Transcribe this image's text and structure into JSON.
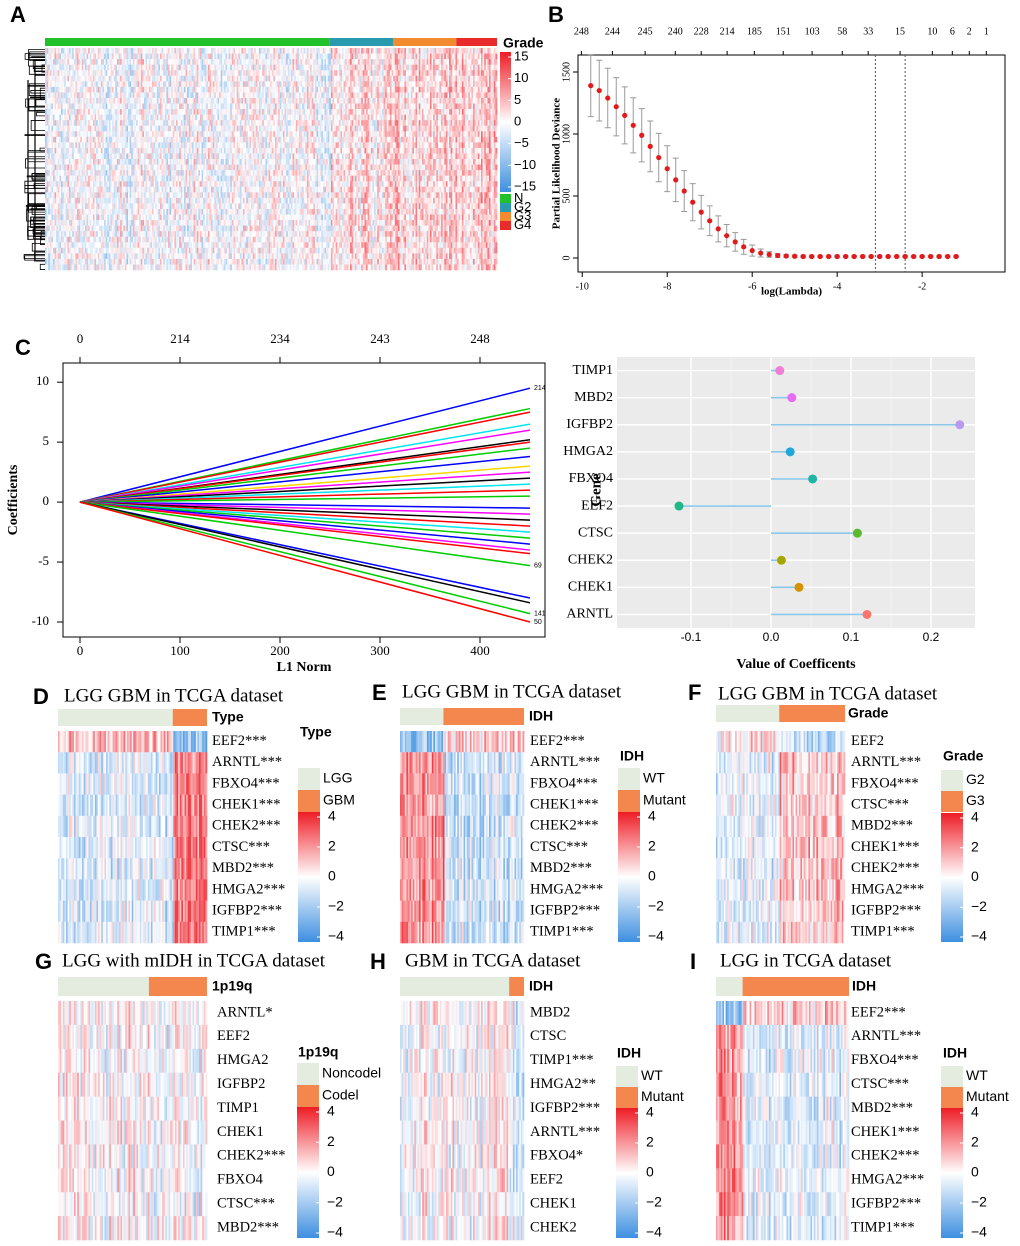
{
  "chart_data": [
    {
      "panel": "B",
      "type": "errorbar",
      "xlabel": "log(Lambda)",
      "ylabel": "Partial Likelihood Deviance",
      "x": [
        -9.8,
        -9.6,
        -9.4,
        -9.2,
        -9.0,
        -8.8,
        -8.6,
        -8.4,
        -8.2,
        -8.0,
        -7.8,
        -7.6,
        -7.4,
        -7.2,
        -7.0,
        -6.8,
        -6.6,
        -6.4,
        -6.2,
        -6.0,
        -5.8,
        -5.6,
        -5.4,
        -5.2,
        -5.0,
        -4.8,
        -4.6,
        -4.4,
        -4.2,
        -4.0,
        -3.8,
        -3.6,
        -3.4,
        -3.2,
        -3.0,
        -2.8,
        -2.6,
        -2.4,
        -2.2,
        -2.0,
        -1.8,
        -1.6,
        -1.4,
        -1.2
      ],
      "values": [
        1390,
        1350,
        1290,
        1220,
        1150,
        1070,
        990,
        900,
        810,
        720,
        630,
        540,
        450,
        370,
        300,
        235,
        180,
        130,
        90,
        60,
        40,
        28,
        20,
        16,
        14,
        12,
        12,
        12,
        12,
        12,
        12,
        12,
        12,
        12,
        12,
        12,
        12,
        12,
        12,
        12,
        12,
        12,
        12,
        12
      ],
      "errors": [
        250,
        245,
        240,
        235,
        230,
        222,
        215,
        205,
        195,
        185,
        175,
        165,
        150,
        135,
        120,
        105,
        90,
        75,
        60,
        45,
        32,
        22,
        15,
        10,
        8,
        5,
        5,
        5,
        5,
        5,
        5,
        5,
        5,
        5,
        5,
        5,
        5,
        5,
        5,
        5,
        5,
        5,
        5,
        5
      ],
      "color": "#e31a1c",
      "error_color": "#9a9a9a",
      "xlim": [
        -10.1,
        -0.05
      ],
      "ylim": [
        -113,
        1637
      ],
      "xticks": [
        -10,
        -8,
        -6,
        -4,
        -2
      ],
      "yticks": [
        0,
        500,
        1000,
        1500
      ],
      "x2ticks": [
        {
          "value": -10.02,
          "label": "248"
        },
        {
          "value": -9.29,
          "label": "244"
        },
        {
          "value": -8.52,
          "label": "245"
        },
        {
          "value": -7.81,
          "label": "240"
        },
        {
          "value": -7.2,
          "label": "228"
        },
        {
          "value": -6.59,
          "label": "214"
        },
        {
          "value": -5.95,
          "label": "185"
        },
        {
          "value": -5.27,
          "label": "151"
        },
        {
          "value": -4.59,
          "label": "103"
        },
        {
          "value": -3.88,
          "label": "58"
        },
        {
          "value": -3.27,
          "label": "33"
        },
        {
          "value": -2.52,
          "label": "15"
        },
        {
          "value": -1.76,
          "label": "10"
        },
        {
          "value": -1.29,
          "label": "6"
        },
        {
          "value": -0.89,
          "label": "2"
        },
        {
          "value": -0.49,
          "label": "1"
        }
      ],
      "vlines": [
        -3.1,
        -2.4
      ]
    },
    {
      "panel": "C",
      "type": "line",
      "xlabel": "L1 Norm",
      "ylabel": "Coefficients",
      "x": [
        0,
        450
      ],
      "xlim": [
        -17,
        465
      ],
      "ylim": [
        -11.25,
        11.6
      ],
      "xticks": [
        0,
        100,
        200,
        300,
        400
      ],
      "yticks": [
        -10,
        -5,
        0,
        5,
        10
      ],
      "x2ticks": [
        {
          "value": 0,
          "label": "0"
        },
        {
          "value": 100,
          "label": "214"
        },
        {
          "value": 200,
          "label": "234"
        },
        {
          "value": 300,
          "label": "243"
        },
        {
          "value": 400,
          "label": "248"
        }
      ],
      "series": [
        {
          "name": "214",
          "color": "#0000ff",
          "values": [
            0,
            9.5
          ]
        },
        {
          "color": "#00cd00",
          "values": [
            0,
            7.8
          ]
        },
        {
          "color": "#ff0000",
          "values": [
            0,
            7.5
          ]
        },
        {
          "color": "#00e5ee",
          "values": [
            0,
            6.5
          ]
        },
        {
          "color": "#ff00ff",
          "values": [
            0,
            6.0
          ]
        },
        {
          "color": "#000000",
          "values": [
            0,
            5.2
          ]
        },
        {
          "color": "#ff0000",
          "values": [
            0,
            5.0
          ]
        },
        {
          "color": "#00cd00",
          "values": [
            0,
            4.5
          ]
        },
        {
          "color": "#0000ff",
          "values": [
            0,
            3.8
          ]
        },
        {
          "color": "#ffd700",
          "values": [
            0,
            3.0
          ]
        },
        {
          "color": "#ff00ff",
          "values": [
            0,
            2.5
          ]
        },
        {
          "color": "#000000",
          "values": [
            0,
            2.0
          ]
        },
        {
          "color": "#00e5ee",
          "values": [
            0,
            1.5
          ]
        },
        {
          "color": "#ff0000",
          "values": [
            0,
            1.0
          ]
        },
        {
          "color": "#00cd00",
          "values": [
            0,
            0.5
          ]
        },
        {
          "color": "#0000ff",
          "values": [
            0,
            -0.5
          ]
        },
        {
          "color": "#ff00ff",
          "values": [
            0,
            -1.0
          ]
        },
        {
          "color": "#000000",
          "values": [
            0,
            -1.5
          ]
        },
        {
          "color": "#ff0000",
          "values": [
            0,
            -2.0
          ]
        },
        {
          "color": "#00e5ee",
          "values": [
            0,
            -2.5
          ]
        },
        {
          "color": "#00cd00",
          "values": [
            0,
            -3.0
          ]
        },
        {
          "color": "#0000ff",
          "values": [
            0,
            -3.5
          ]
        },
        {
          "color": "#ff00ff",
          "values": [
            0,
            -4.0
          ]
        },
        {
          "color": "#ff0000",
          "values": [
            0,
            -4.3
          ]
        },
        {
          "name": "69",
          "color": "#00cd00",
          "values": [
            0,
            -5.3
          ]
        },
        {
          "color": "#0000ff",
          "values": [
            0,
            -8.0
          ]
        },
        {
          "color": "#000000",
          "values": [
            0,
            -8.4
          ]
        },
        {
          "name": "141",
          "color": "#00cd00",
          "values": [
            0,
            -9.3
          ]
        },
        {
          "name": "50",
          "color": "#ff0000",
          "values": [
            0,
            -10.0
          ]
        }
      ]
    },
    {
      "type": "lollipop",
      "xlabel": "Value of Coefficents",
      "ylabel": "Gene",
      "categories": [
        "TIMP1",
        "MBD2",
        "IGFBP2",
        "HMGA2",
        "FBXO4",
        "EEF2",
        "CTSC",
        "CHEK2",
        "CHEK1",
        "ARNTL"
      ],
      "values": [
        0.011,
        0.026,
        0.236,
        0.024,
        0.052,
        -0.115,
        0.108,
        0.013,
        0.035,
        0.12
      ],
      "colors": [
        "#f07ed6",
        "#e76bf3",
        "#b59cf2",
        "#22a6d9",
        "#20b5a5",
        "#1fb886",
        "#5cb82e",
        "#a3a500",
        "#d39200",
        "#f8766d"
      ],
      "stem_color": "#8cc8ea",
      "background": "#ebebeb",
      "xlim": [
        -0.1925,
        0.255
      ],
      "xticks": [
        -0.1,
        {
          "value": 0,
          "label": "0.0"
        },
        0.1,
        0.2
      ],
      "grid": true
    }
  ],
  "heatmaps": [
    {
      "panel": "A",
      "annotation_name": "Grade",
      "groups": [
        {
          "name": "N",
          "color": "#22c02a"
        },
        {
          "name": "G2",
          "color": "#2a9bae"
        },
        {
          "name": "G3",
          "color": "#f28b30"
        },
        {
          "name": "G4",
          "color": "#ea2b2b"
        }
      ],
      "scale_ticks": [
        15,
        10,
        5,
        0,
        {
          "value": -5,
          "label": "−5"
        },
        {
          "value": -10,
          "label": "−10"
        },
        {
          "value": -15,
          "label": "−15"
        }
      ],
      "low_color": "#3d8fe0",
      "high_color": "#ee1c25"
    },
    {
      "panel": "D",
      "title": "LGG GBM in TCGA dataset",
      "annotation_name": "Type",
      "legend_title": "Type",
      "groups": [
        {
          "name": "LGG",
          "color": "#e3ecdf"
        },
        {
          "name": "GBM",
          "color": "#f4874e"
        }
      ],
      "genes": [
        "EEF2***",
        "ARNTL***",
        "FBXO4***",
        "CHEK1***",
        "CHEK2***",
        "CTSC***",
        "MBD2***",
        "HMGA2***",
        "IGFBP2***",
        "TIMP1***"
      ],
      "scale_ticks": [
        4,
        2,
        0,
        {
          "value": -2,
          "label": "−2"
        },
        {
          "value": -4,
          "label": "−4"
        }
      ],
      "low_color": "#3d8fe0",
      "high_color": "#ee1c25"
    },
    {
      "panel": "E",
      "title": "LGG GBM in TCGA dataset",
      "annotation_name": "IDH",
      "legend_title": "IDH",
      "groups": [
        {
          "name": "WT",
          "color": "#e3ecdf"
        },
        {
          "name": "Mutant",
          "color": "#f4874e"
        }
      ],
      "genes": [
        "EEF2***",
        "ARNTL***",
        "FBXO4***",
        "CHEK1***",
        "CHEK2***",
        "CTSC***",
        "MBD2***",
        "HMGA2***",
        "IGFBP2***",
        "TIMP1***"
      ],
      "scale_ticks": [
        4,
        2,
        0,
        {
          "value": -2,
          "label": "−2"
        },
        {
          "value": -4,
          "label": "−4"
        }
      ],
      "low_color": "#3d8fe0",
      "high_color": "#ee1c25"
    },
    {
      "panel": "F",
      "title": "LGG GBM in TCGA dataset",
      "annotation_name": "Grade",
      "legend_title": "Grade",
      "groups": [
        {
          "name": "G2",
          "color": "#e3ecdf"
        },
        {
          "name": "G3",
          "color": "#f4874e"
        }
      ],
      "genes": [
        "EEF2",
        "ARNTL***",
        "FBXO4***",
        "CTSC***",
        "MBD2***",
        "CHEK1***",
        "CHEK2***",
        "HMGA2***",
        "IGFBP2***",
        "TIMP1***"
      ],
      "scale_ticks": [
        4,
        2,
        0,
        {
          "value": -2,
          "label": "−2"
        },
        {
          "value": -4,
          "label": "−4"
        }
      ],
      "low_color": "#3d8fe0",
      "high_color": "#ee1c25"
    },
    {
      "panel": "G",
      "title": "LGG with mIDH in TCGA dataset",
      "annotation_name": "1p19q",
      "legend_title": "1p19q",
      "groups": [
        {
          "name": "Noncodel",
          "color": "#e3ecdf"
        },
        {
          "name": "Codel",
          "color": "#f4874e"
        }
      ],
      "genes": [
        "ARNTL*",
        "EEF2",
        "HMGA2",
        "IGFBP2",
        "TIMP1",
        "CHEK1",
        "CHEK2***",
        "FBXO4",
        "CTSC***",
        "MBD2***"
      ],
      "scale_ticks": [
        4,
        2,
        0,
        {
          "value": -2,
          "label": "−2"
        },
        {
          "value": -4,
          "label": "−4"
        }
      ],
      "low_color": "#3d8fe0",
      "high_color": "#ee1c25"
    },
    {
      "panel": "H",
      "title": "GBM in TCGA dataset",
      "annotation_name": "IDH",
      "legend_title": "IDH",
      "groups": [
        {
          "name": "WT",
          "color": "#e3ecdf"
        },
        {
          "name": "Mutant",
          "color": "#f4874e"
        }
      ],
      "genes": [
        "MBD2",
        "CTSC",
        "TIMP1***",
        "HMGA2**",
        "IGFBP2***",
        "ARNTL***",
        "FBXO4*",
        "EEF2",
        "CHEK1",
        "CHEK2"
      ],
      "scale_ticks": [
        4,
        2,
        0,
        {
          "value": -2,
          "label": "−2"
        },
        {
          "value": -4,
          "label": "−4"
        }
      ],
      "low_color": "#3d8fe0",
      "high_color": "#ee1c25"
    },
    {
      "panel": "I",
      "title": "LGG in TCGA dataset",
      "annotation_name": "IDH",
      "legend_title": "IDH",
      "groups": [
        {
          "name": "WT",
          "color": "#e3ecdf"
        },
        {
          "name": "Mutant",
          "color": "#f4874e"
        }
      ],
      "genes": [
        "EEF2***",
        "ARNTL***",
        "FBXO4***",
        "CTSC***",
        "MBD2***",
        "CHEK1***",
        "CHEK2***",
        "HMGA2***",
        "IGFBP2***",
        "TIMP1***"
      ],
      "scale_ticks": [
        4,
        2,
        0,
        {
          "value": -2,
          "label": "−2"
        },
        {
          "value": -4,
          "label": "−4"
        }
      ],
      "low_color": "#3d8fe0",
      "high_color": "#ee1c25"
    }
  ]
}
